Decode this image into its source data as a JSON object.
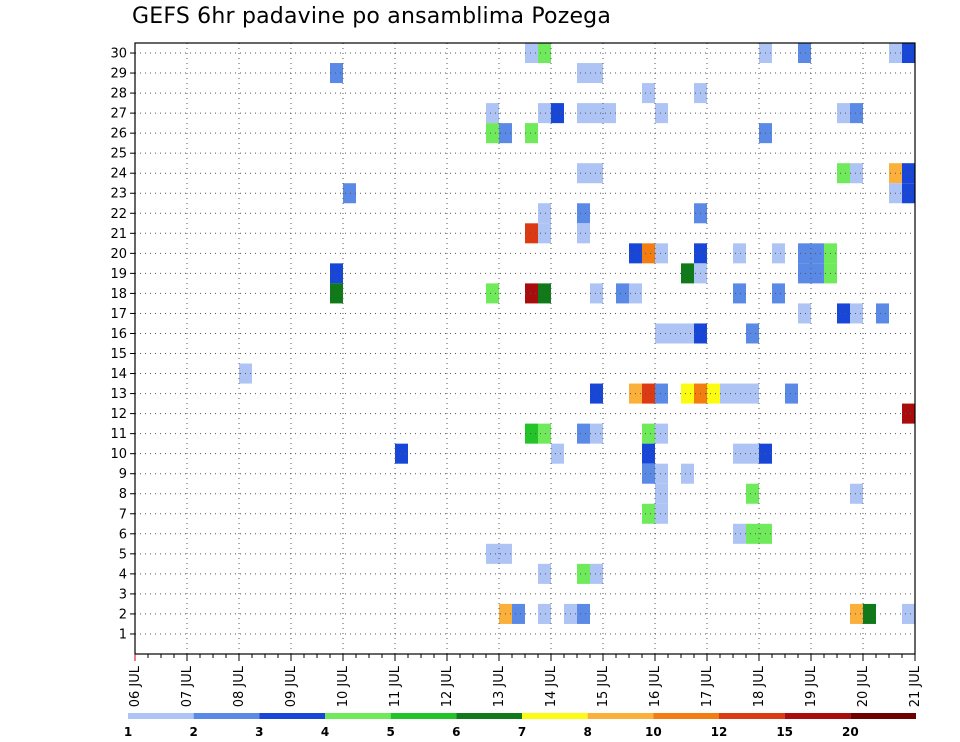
{
  "chart_data": {
    "type": "heatmap",
    "title": "GEFS 6hr padavine po ansamblima Pozega",
    "x_tick_labels": [
      "06 JUL",
      "07 JUL",
      "08 JUL",
      "09 JUL",
      "10 JUL",
      "11 JUL",
      "12 JUL",
      "13 JUL",
      "14 JUL",
      "15 JUL",
      "16 JUL",
      "17 JUL",
      "18 JUL",
      "19 JUL",
      "20 JUL",
      "21 JUL"
    ],
    "y_tick_labels": [
      "1",
      "2",
      "3",
      "4",
      "5",
      "6",
      "7",
      "8",
      "9",
      "10",
      "11",
      "12",
      "13",
      "14",
      "15",
      "16",
      "17",
      "18",
      "19",
      "20",
      "21",
      "22",
      "23",
      "24",
      "25",
      "26",
      "27",
      "28",
      "29",
      "30"
    ],
    "x_range_days": [
      0,
      15
    ],
    "y_range": [
      0,
      30.5
    ],
    "grid": true,
    "legend_position": "bottom",
    "legend": {
      "labels": [
        "1",
        "2",
        "3",
        "4",
        "5",
        "6",
        "7",
        "8",
        "10",
        "12",
        "15",
        "20"
      ],
      "colors": [
        "#aec4f4",
        "#5a8ae6",
        "#1846d6",
        "#6eea5a",
        "#22c42a",
        "#107a1a",
        "#fbfc12",
        "#fbb03c",
        "#f47d12",
        "#dc3a12",
        "#a80c0c",
        "#6e0000"
      ]
    },
    "cells": [
      {
        "day": 7.5,
        "member": 30,
        "level": 1
      },
      {
        "day": 7.75,
        "member": 30,
        "level": 4
      },
      {
        "day": 12.0,
        "member": 30,
        "level": 1
      },
      {
        "day": 12.75,
        "member": 30,
        "level": 2
      },
      {
        "day": 14.5,
        "member": 30,
        "level": 1
      },
      {
        "day": 14.75,
        "member": 30,
        "level": 3
      },
      {
        "day": 3.75,
        "member": 29,
        "level": 2
      },
      {
        "day": 8.5,
        "member": 29,
        "level": 1
      },
      {
        "day": 8.75,
        "member": 29,
        "level": 1
      },
      {
        "day": 9.75,
        "member": 28,
        "level": 1
      },
      {
        "day": 10.75,
        "member": 28,
        "level": 1
      },
      {
        "day": 6.75,
        "member": 27,
        "level": 1
      },
      {
        "day": 7.75,
        "member": 27,
        "level": 1
      },
      {
        "day": 8.0,
        "member": 27,
        "level": 3
      },
      {
        "day": 8.5,
        "member": 27,
        "level": 1
      },
      {
        "day": 8.75,
        "member": 27,
        "level": 1
      },
      {
        "day": 9.0,
        "member": 27,
        "level": 1
      },
      {
        "day": 10.0,
        "member": 27,
        "level": 1
      },
      {
        "day": 13.5,
        "member": 27,
        "level": 1
      },
      {
        "day": 13.75,
        "member": 27,
        "level": 2
      },
      {
        "day": 6.75,
        "member": 26,
        "level": 4
      },
      {
        "day": 7.0,
        "member": 26,
        "level": 2
      },
      {
        "day": 7.5,
        "member": 26,
        "level": 4
      },
      {
        "day": 12.0,
        "member": 26,
        "level": 2
      },
      {
        "day": 8.5,
        "member": 24,
        "level": 1
      },
      {
        "day": 8.75,
        "member": 24,
        "level": 1
      },
      {
        "day": 13.5,
        "member": 24,
        "level": 4
      },
      {
        "day": 13.75,
        "member": 24,
        "level": 1
      },
      {
        "day": 14.5,
        "member": 24,
        "level": 8
      },
      {
        "day": 14.75,
        "member": 24,
        "level": 3
      },
      {
        "day": 4.0,
        "member": 23,
        "level": 2
      },
      {
        "day": 14.5,
        "member": 23,
        "level": 1
      },
      {
        "day": 14.75,
        "member": 23,
        "level": 3
      },
      {
        "day": 7.75,
        "member": 22,
        "level": 1
      },
      {
        "day": 8.5,
        "member": 22,
        "level": 2
      },
      {
        "day": 10.75,
        "member": 22,
        "level": 2
      },
      {
        "day": 7.5,
        "member": 21,
        "level": 10
      },
      {
        "day": 7.75,
        "member": 21,
        "level": 1
      },
      {
        "day": 8.5,
        "member": 21,
        "level": 1
      },
      {
        "day": 9.5,
        "member": 20,
        "level": 3
      },
      {
        "day": 9.75,
        "member": 20,
        "level": 9
      },
      {
        "day": 10.0,
        "member": 20,
        "level": 1
      },
      {
        "day": 10.75,
        "member": 20,
        "level": 3
      },
      {
        "day": 11.5,
        "member": 20,
        "level": 1
      },
      {
        "day": 12.25,
        "member": 20,
        "level": 1
      },
      {
        "day": 12.75,
        "member": 20,
        "level": 2
      },
      {
        "day": 13.0,
        "member": 20,
        "level": 2
      },
      {
        "day": 13.25,
        "member": 20,
        "level": 4
      },
      {
        "day": 3.75,
        "member": 19,
        "level": 3
      },
      {
        "day": 10.5,
        "member": 19,
        "level": 6
      },
      {
        "day": 10.75,
        "member": 19,
        "level": 1
      },
      {
        "day": 12.75,
        "member": 19,
        "level": 2
      },
      {
        "day": 13.0,
        "member": 19,
        "level": 2
      },
      {
        "day": 13.25,
        "member": 19,
        "level": 4
      },
      {
        "day": 3.75,
        "member": 18,
        "level": 6
      },
      {
        "day": 6.75,
        "member": 18,
        "level": 4
      },
      {
        "day": 7.5,
        "member": 18,
        "level": 11
      },
      {
        "day": 7.75,
        "member": 18,
        "level": 6
      },
      {
        "day": 8.75,
        "member": 18,
        "level": 1
      },
      {
        "day": 9.25,
        "member": 18,
        "level": 2
      },
      {
        "day": 9.5,
        "member": 18,
        "level": 1
      },
      {
        "day": 11.5,
        "member": 18,
        "level": 2
      },
      {
        "day": 12.25,
        "member": 18,
        "level": 2
      },
      {
        "day": 12.75,
        "member": 17,
        "level": 1
      },
      {
        "day": 13.5,
        "member": 17,
        "level": 3
      },
      {
        "day": 13.75,
        "member": 17,
        "level": 1
      },
      {
        "day": 14.25,
        "member": 17,
        "level": 2
      },
      {
        "day": 10.0,
        "member": 16,
        "level": 1
      },
      {
        "day": 10.25,
        "member": 16,
        "level": 1
      },
      {
        "day": 10.5,
        "member": 16,
        "level": 1
      },
      {
        "day": 10.75,
        "member": 16,
        "level": 3
      },
      {
        "day": 11.75,
        "member": 16,
        "level": 2
      },
      {
        "day": 2.0,
        "member": 14,
        "level": 1
      },
      {
        "day": 8.75,
        "member": 13,
        "level": 3
      },
      {
        "day": 9.5,
        "member": 13,
        "level": 8
      },
      {
        "day": 9.75,
        "member": 13,
        "level": 10
      },
      {
        "day": 10.0,
        "member": 13,
        "level": 2
      },
      {
        "day": 10.5,
        "member": 13,
        "level": 7
      },
      {
        "day": 10.75,
        "member": 13,
        "level": 9
      },
      {
        "day": 11.0,
        "member": 13,
        "level": 7
      },
      {
        "day": 11.25,
        "member": 13,
        "level": 1
      },
      {
        "day": 11.5,
        "member": 13,
        "level": 1
      },
      {
        "day": 11.75,
        "member": 13,
        "level": 1
      },
      {
        "day": 12.5,
        "member": 13,
        "level": 2
      },
      {
        "day": 14.75,
        "member": 12,
        "level": 11
      },
      {
        "day": 7.5,
        "member": 11,
        "level": 5
      },
      {
        "day": 7.75,
        "member": 11,
        "level": 4
      },
      {
        "day": 8.5,
        "member": 11,
        "level": 2
      },
      {
        "day": 8.75,
        "member": 11,
        "level": 1
      },
      {
        "day": 9.75,
        "member": 11,
        "level": 4
      },
      {
        "day": 10.0,
        "member": 11,
        "level": 1
      },
      {
        "day": 5.0,
        "member": 10,
        "level": 3
      },
      {
        "day": 8.0,
        "member": 10,
        "level": 1
      },
      {
        "day": 9.75,
        "member": 10,
        "level": 3
      },
      {
        "day": 11.5,
        "member": 10,
        "level": 1
      },
      {
        "day": 11.75,
        "member": 10,
        "level": 1
      },
      {
        "day": 12.0,
        "member": 10,
        "level": 3
      },
      {
        "day": 9.75,
        "member": 9,
        "level": 2
      },
      {
        "day": 10.0,
        "member": 9,
        "level": 1
      },
      {
        "day": 10.5,
        "member": 9,
        "level": 1
      },
      {
        "day": 10.0,
        "member": 8,
        "level": 1
      },
      {
        "day": 11.75,
        "member": 8,
        "level": 4
      },
      {
        "day": 13.75,
        "member": 8,
        "level": 1
      },
      {
        "day": 9.75,
        "member": 7,
        "level": 4
      },
      {
        "day": 10.0,
        "member": 7,
        "level": 1
      },
      {
        "day": 11.5,
        "member": 6,
        "level": 1
      },
      {
        "day": 11.75,
        "member": 6,
        "level": 4
      },
      {
        "day": 12.0,
        "member": 6,
        "level": 4
      },
      {
        "day": 6.75,
        "member": 5,
        "level": 1
      },
      {
        "day": 7.0,
        "member": 5,
        "level": 1
      },
      {
        "day": 7.75,
        "member": 4,
        "level": 1
      },
      {
        "day": 8.5,
        "member": 4,
        "level": 4
      },
      {
        "day": 8.75,
        "member": 4,
        "level": 1
      },
      {
        "day": 7.0,
        "member": 2,
        "level": 8
      },
      {
        "day": 7.25,
        "member": 2,
        "level": 2
      },
      {
        "day": 7.75,
        "member": 2,
        "level": 1
      },
      {
        "day": 8.25,
        "member": 2,
        "level": 1
      },
      {
        "day": 8.5,
        "member": 2,
        "level": 2
      },
      {
        "day": 13.75,
        "member": 2,
        "level": 8
      },
      {
        "day": 14.0,
        "member": 2,
        "level": 6
      },
      {
        "day": 14.75,
        "member": 2,
        "level": 1
      }
    ]
  }
}
